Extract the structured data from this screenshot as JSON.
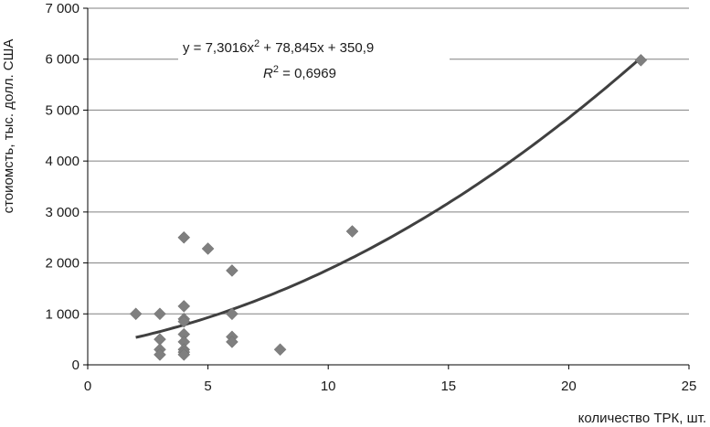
{
  "chart_data": {
    "type": "scatter",
    "xlabel": "количество ТРК, шт.",
    "ylabel": "стоиомсть, тыс. долл. США",
    "xlim": [
      0,
      25
    ],
    "ylim": [
      0,
      7000
    ],
    "x_ticks": [
      0,
      5,
      10,
      15,
      20,
      25
    ],
    "x_tick_labels": [
      "0",
      "5",
      "10",
      "15",
      "20",
      "25"
    ],
    "y_ticks": [
      0,
      1000,
      2000,
      3000,
      4000,
      5000,
      6000,
      7000
    ],
    "y_tick_labels": [
      "0",
      "1 000",
      "2 000",
      "3 000",
      "4 000",
      "5 000",
      "6 000",
      "7 000"
    ],
    "grid": "horizontal",
    "points": [
      {
        "x": 2,
        "y": 1000
      },
      {
        "x": 3,
        "y": 1000
      },
      {
        "x": 3,
        "y": 500
      },
      {
        "x": 3,
        "y": 300
      },
      {
        "x": 3,
        "y": 200
      },
      {
        "x": 4,
        "y": 2500
      },
      {
        "x": 4,
        "y": 1150
      },
      {
        "x": 4,
        "y": 900
      },
      {
        "x": 4,
        "y": 850
      },
      {
        "x": 4,
        "y": 600
      },
      {
        "x": 4,
        "y": 450
      },
      {
        "x": 4,
        "y": 300
      },
      {
        "x": 4,
        "y": 250
      },
      {
        "x": 4,
        "y": 200
      },
      {
        "x": 5,
        "y": 2280
      },
      {
        "x": 6,
        "y": 1850
      },
      {
        "x": 6,
        "y": 1000
      },
      {
        "x": 6,
        "y": 550
      },
      {
        "x": 6,
        "y": 450
      },
      {
        "x": 8,
        "y": 300
      },
      {
        "x": 11,
        "y": 2620
      },
      {
        "x": 23,
        "y": 5980
      }
    ],
    "trendline": {
      "type": "polynomial",
      "coefficients": [
        7.3016,
        78.845,
        350.9
      ],
      "x_range": [
        2,
        23
      ],
      "equation_prefix": "y = 7,3016x",
      "equation_suffix": " + 78,845x + 350,9",
      "equation_exponent": "2",
      "r2_prefix": "R",
      "r2_exponent": "2",
      "r2_value": " = 0,6969"
    },
    "colors": {
      "marker": "#7f7f7f",
      "trendline": "#404040",
      "grid": "#808080",
      "axis": "#000000"
    }
  }
}
